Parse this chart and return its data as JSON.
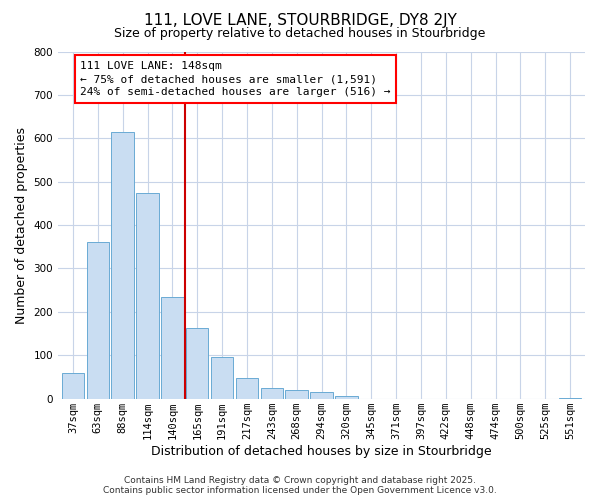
{
  "title": "111, LOVE LANE, STOURBRIDGE, DY8 2JY",
  "subtitle": "Size of property relative to detached houses in Stourbridge",
  "xlabel": "Distribution of detached houses by size in Stourbridge",
  "ylabel": "Number of detached properties",
  "bar_labels": [
    "37sqm",
    "63sqm",
    "88sqm",
    "114sqm",
    "140sqm",
    "165sqm",
    "191sqm",
    "217sqm",
    "243sqm",
    "268sqm",
    "294sqm",
    "320sqm",
    "345sqm",
    "371sqm",
    "397sqm",
    "422sqm",
    "448sqm",
    "474sqm",
    "500sqm",
    "525sqm",
    "551sqm"
  ],
  "bar_values": [
    60,
    360,
    615,
    475,
    235,
    163,
    97,
    47,
    25,
    20,
    15,
    5,
    0,
    0,
    0,
    0,
    0,
    0,
    0,
    0,
    2
  ],
  "bar_color": "#c9ddf2",
  "bar_edge_color": "#6aaad4",
  "vline_color": "#cc0000",
  "annotation_box_text": "111 LOVE LANE: 148sqm\n← 75% of detached houses are smaller (1,591)\n24% of semi-detached houses are larger (516) →",
  "ylim": [
    0,
    800
  ],
  "yticks": [
    0,
    100,
    200,
    300,
    400,
    500,
    600,
    700,
    800
  ],
  "footer_line1": "Contains HM Land Registry data © Crown copyright and database right 2025.",
  "footer_line2": "Contains public sector information licensed under the Open Government Licence v3.0.",
  "background_color": "#ffffff",
  "grid_color": "#c8d4e8",
  "title_fontsize": 11,
  "subtitle_fontsize": 9,
  "axis_label_fontsize": 9,
  "tick_fontsize": 7.5,
  "footer_fontsize": 6.5,
  "ann_fontsize": 8
}
